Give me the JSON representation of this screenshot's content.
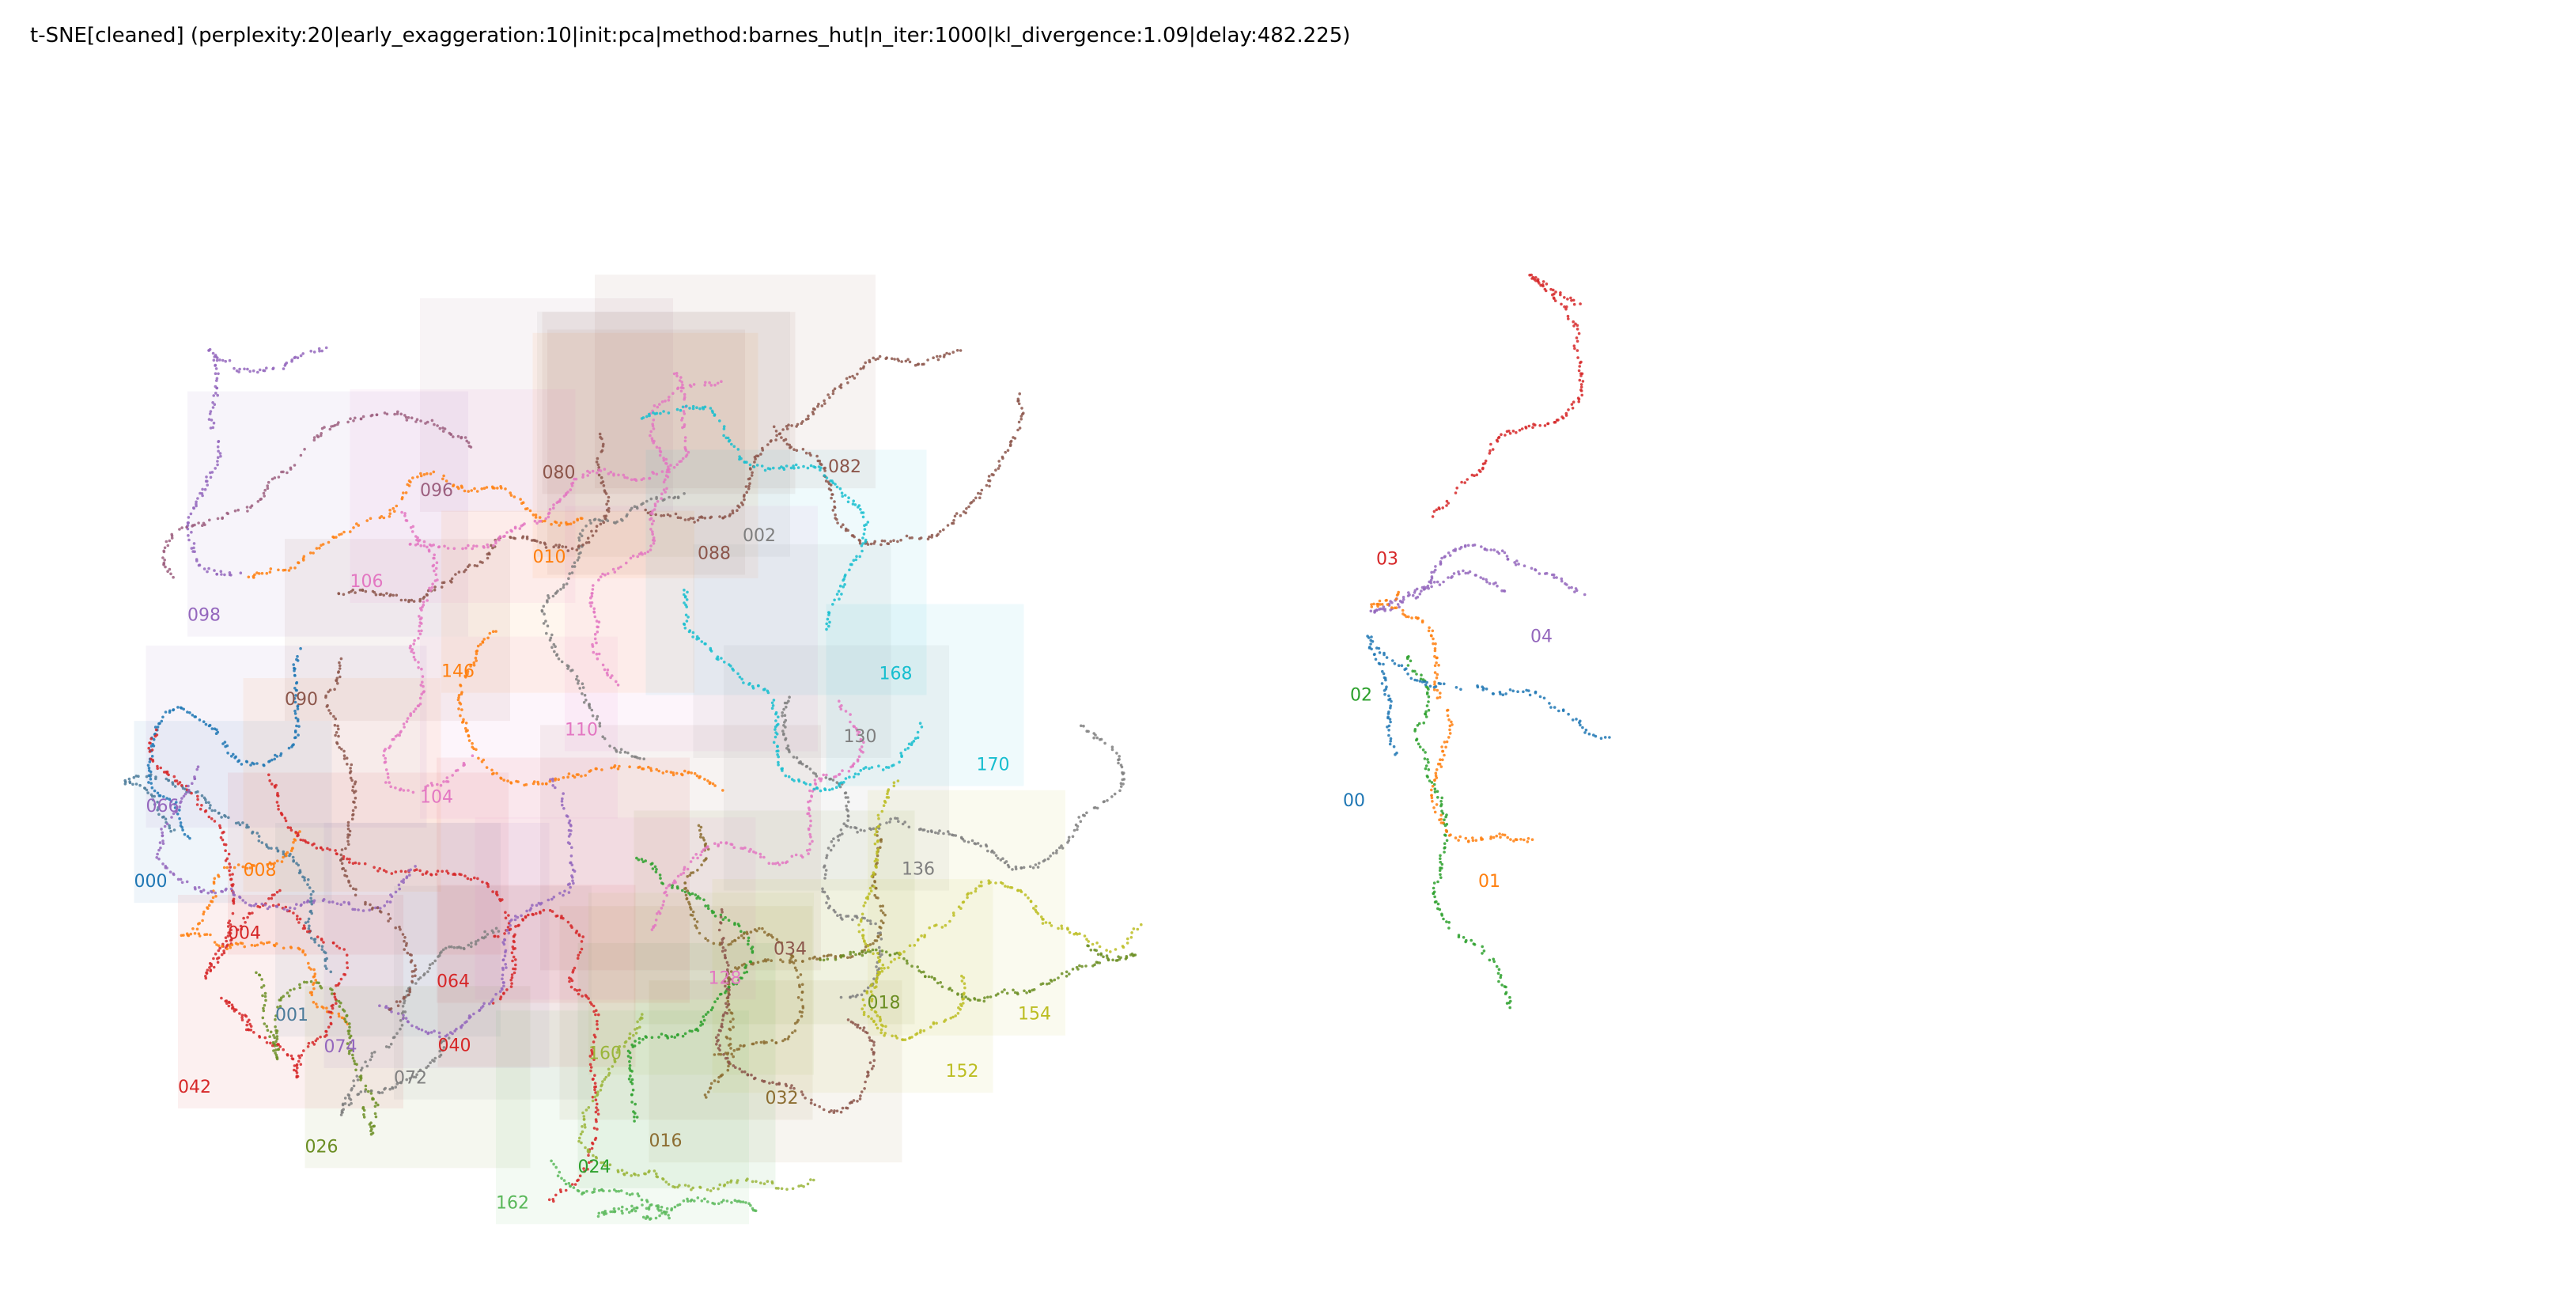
{
  "figure": {
    "title": "t-SNE[cleaned] (perplexity:20|early_exaggeration:10|init:pca|method:barnes_hut|n_iter:1000|kl_divergence:1.09|delay:482.225)"
  },
  "chart_data": [
    {
      "type": "scatter",
      "title": "",
      "xlabel": "",
      "ylabel": "",
      "axes_visible": false,
      "grid": false,
      "legend": "none",
      "point_labels": [
        {
          "text": "000",
          "color": "#1f77b4",
          "x": 0.053,
          "y": 0.302
        },
        {
          "text": "001",
          "color": "#4b7b9a",
          "x": 0.172,
          "y": 0.183
        },
        {
          "text": "002",
          "color": "#7f7f7f",
          "x": 0.566,
          "y": 0.61
        },
        {
          "text": "004",
          "color": "#d62728",
          "x": 0.132,
          "y": 0.256
        },
        {
          "text": "008",
          "color": "#ff7f0e",
          "x": 0.145,
          "y": 0.312
        },
        {
          "text": "010",
          "color": "#ff7f0e",
          "x": 0.389,
          "y": 0.591
        },
        {
          "text": "016",
          "color": "#8c6d31",
          "x": 0.487,
          "y": 0.071
        },
        {
          "text": "018",
          "color": "#6b8e23",
          "x": 0.671,
          "y": 0.194
        },
        {
          "text": "024",
          "color": "#2ca02c",
          "x": 0.427,
          "y": 0.048
        },
        {
          "text": "026",
          "color": "#6b8e23",
          "x": 0.197,
          "y": 0.066
        },
        {
          "text": "032",
          "color": "#8c6d31",
          "x": 0.585,
          "y": 0.109
        },
        {
          "text": "034",
          "color": "#8c564b",
          "x": 0.592,
          "y": 0.242
        },
        {
          "text": "040",
          "color": "#d62728",
          "x": 0.309,
          "y": 0.156
        },
        {
          "text": "042",
          "color": "#d62728",
          "x": 0.09,
          "y": 0.119
        },
        {
          "text": "064",
          "color": "#d62728",
          "x": 0.308,
          "y": 0.213
        },
        {
          "text": "066",
          "color": "#9467bd",
          "x": 0.063,
          "y": 0.369
        },
        {
          "text": "072",
          "color": "#7f7f7f",
          "x": 0.272,
          "y": 0.127
        },
        {
          "text": "074",
          "color": "#9467bd",
          "x": 0.213,
          "y": 0.155
        },
        {
          "text": "080",
          "color": "#8c564b",
          "x": 0.397,
          "y": 0.666
        },
        {
          "text": "082",
          "color": "#8c564b",
          "x": 0.638,
          "y": 0.671
        },
        {
          "text": "088",
          "color": "#8c564b",
          "x": 0.528,
          "y": 0.594
        },
        {
          "text": "090",
          "color": "#8c564b",
          "x": 0.18,
          "y": 0.464
        },
        {
          "text": "096",
          "color": "#9c5f7f",
          "x": 0.294,
          "y": 0.65
        },
        {
          "text": "098",
          "color": "#9467bd",
          "x": 0.098,
          "y": 0.539
        },
        {
          "text": "104",
          "color": "#e377c2",
          "x": 0.294,
          "y": 0.377
        },
        {
          "text": "106",
          "color": "#e377c2",
          "x": 0.235,
          "y": 0.569
        },
        {
          "text": "110",
          "color": "#e377c2",
          "x": 0.416,
          "y": 0.437
        },
        {
          "text": "128",
          "color": "#e377c2",
          "x": 0.537,
          "y": 0.216
        },
        {
          "text": "130",
          "color": "#7f7f7f",
          "x": 0.651,
          "y": 0.431
        },
        {
          "text": "136",
          "color": "#7f7f7f",
          "x": 0.7,
          "y": 0.313
        },
        {
          "text": "146",
          "color": "#ff7f0e",
          "x": 0.312,
          "y": 0.489
        },
        {
          "text": "152",
          "color": "#bcbd22",
          "x": 0.737,
          "y": 0.133
        },
        {
          "text": "154",
          "color": "#bcbd22",
          "x": 0.798,
          "y": 0.184
        },
        {
          "text": "160",
          "color": "#9ab53a",
          "x": 0.436,
          "y": 0.149
        },
        {
          "text": "162",
          "color": "#5ab85a",
          "x": 0.358,
          "y": 0.016
        },
        {
          "text": "168",
          "color": "#17becf",
          "x": 0.681,
          "y": 0.487
        },
        {
          "text": "170",
          "color": "#17becf",
          "x": 0.763,
          "y": 0.406
        }
      ]
    },
    {
      "type": "scatter",
      "title": "",
      "xlabel": "",
      "ylabel": "",
      "axes_visible": false,
      "grid": false,
      "legend": "none",
      "point_labels": [
        {
          "text": "03",
          "color": "#d62728",
          "x": 0.04,
          "y": 0.589
        },
        {
          "text": "04",
          "color": "#9467bd",
          "x": 0.17,
          "y": 0.52
        },
        {
          "text": "02",
          "color": "#2ca02c",
          "x": 0.018,
          "y": 0.468
        },
        {
          "text": "00",
          "color": "#1f77b4",
          "x": 0.012,
          "y": 0.374
        },
        {
          "text": "01",
          "color": "#ff7f0e",
          "x": 0.126,
          "y": 0.302
        }
      ]
    }
  ]
}
